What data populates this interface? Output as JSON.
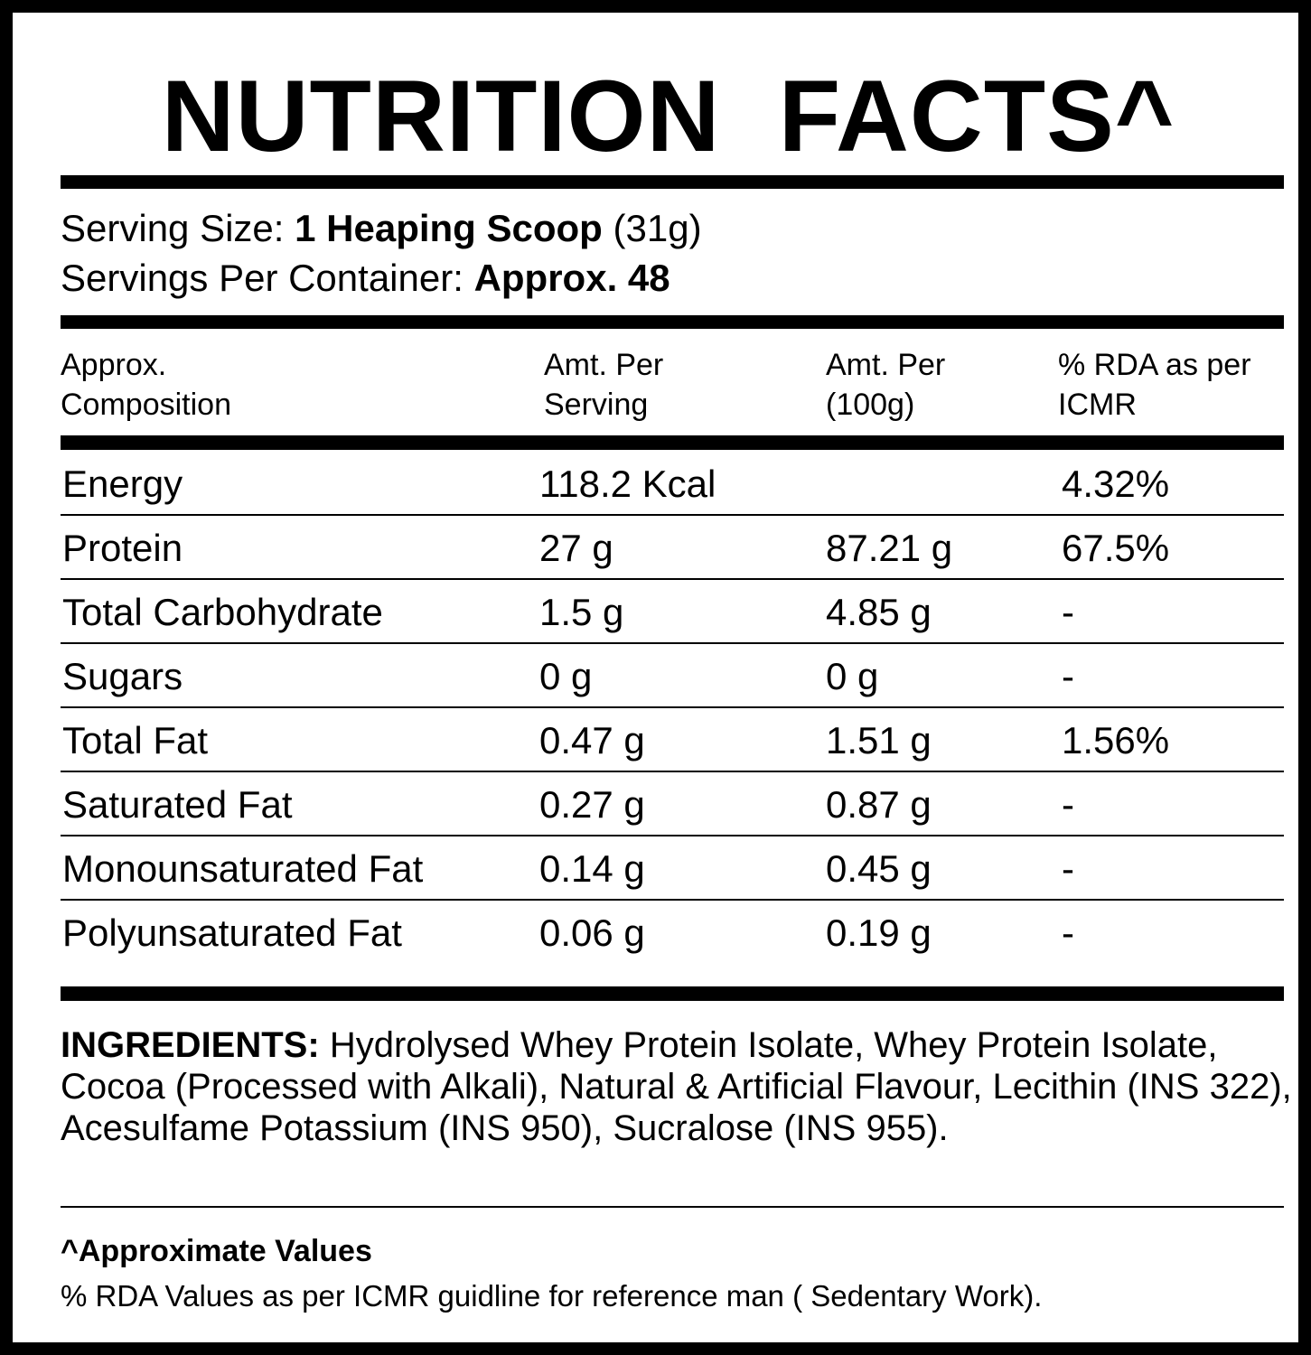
{
  "title": "NUTRITION  FACTS^",
  "serving": {
    "size_label": "Serving Size:",
    "size_value": "1 Heaping Scoop",
    "size_weight": "(31g)",
    "per_container_label": "Servings Per Container:",
    "per_container_value": "Approx. 48"
  },
  "table": {
    "header": [
      "Approx. Composition",
      "Amt. Per Serving",
      "Amt. Per (100g)",
      "% RDA as per ICMR"
    ],
    "rows": [
      [
        "Energy",
        "118.2 Kcal",
        null,
        "4.32%"
      ],
      [
        "Protein",
        "27 g",
        "87.21 g",
        "67.5%"
      ],
      [
        "Total Carbohydrate",
        "1.5 g",
        "4.85 g",
        "-"
      ],
      [
        "Sugars",
        "0 g",
        "0 g",
        "-"
      ],
      [
        "Total Fat",
        "0.47 g",
        "1.51 g",
        "1.56%"
      ],
      [
        "Saturated Fat",
        "0.27 g",
        "0.87 g",
        "-"
      ],
      [
        "Monounsaturated Fat",
        "0.14 g",
        "0.45 g",
        "-"
      ],
      [
        "Polyunsaturated Fat",
        "0.06 g",
        "0.19 g",
        "-"
      ]
    ]
  },
  "ingredients": {
    "label": "INGREDIENTS:",
    "text": "Hydrolysed Whey Protein Isolate, Whey Protein Isolate, Cocoa (Processed with Alkali), Natural & Artificial Flavour, Lecithin (INS 322), Acesulfame Potassium (INS 950), Sucralose (INS 955)."
  },
  "footnotes": {
    "title": "^Approximate Values",
    "text": "% RDA Values as per ICMR guidline for reference man ( Sedentary Work)."
  }
}
